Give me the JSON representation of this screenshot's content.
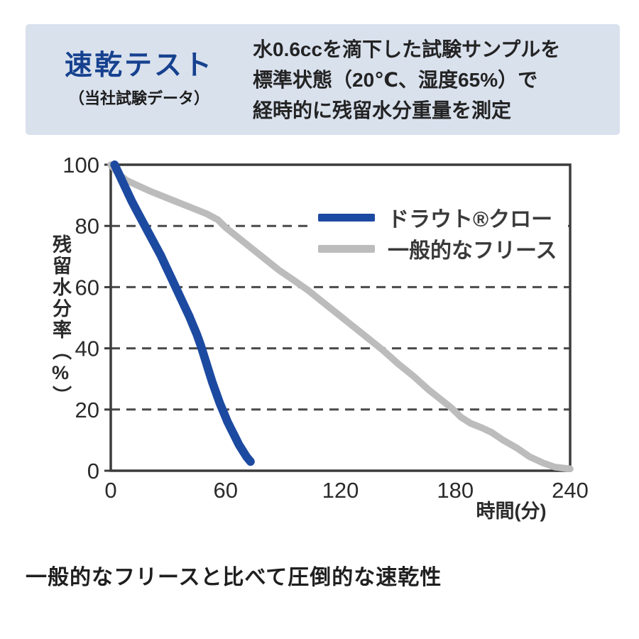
{
  "header": {
    "title": "速乾テスト",
    "subtitle": "（当社試験データ）",
    "description_lines": [
      "水0.6ccを滴下した試験サンプルを",
      "標準状態（20℃、湿度65%）で",
      "経時的に残留水分重量を測定"
    ]
  },
  "chart_data": {
    "type": "line",
    "title": "",
    "xlabel": "時間(分)",
    "ylabel": "残留水分率（%）",
    "xlim": [
      0,
      240
    ],
    "ylim": [
      0,
      100
    ],
    "xticks": [
      0,
      60,
      120,
      180,
      240
    ],
    "yticks": [
      0,
      20,
      40,
      60,
      80,
      100
    ],
    "grid": "horizontal-dashed",
    "legend_position": "upper-right-inside",
    "series": [
      {
        "name": "ドラウト®クロー",
        "color": "#1d4aa1",
        "stroke_width": 12,
        "points": [
          [
            2,
            100
          ],
          [
            5,
            96
          ],
          [
            8,
            92
          ],
          [
            11,
            88
          ],
          [
            14,
            84.5
          ],
          [
            17,
            81
          ],
          [
            20,
            77.5
          ],
          [
            23,
            74
          ],
          [
            26,
            70.5
          ],
          [
            29,
            66.5
          ],
          [
            32,
            62.5
          ],
          [
            35,
            58.5
          ],
          [
            38,
            54.5
          ],
          [
            41,
            50.5
          ],
          [
            43,
            47.5
          ],
          [
            45,
            44.5
          ],
          [
            47,
            41
          ],
          [
            49,
            37
          ],
          [
            51,
            33
          ],
          [
            53,
            29
          ],
          [
            55,
            25.5
          ],
          [
            57,
            22
          ],
          [
            59,
            19
          ],
          [
            61,
            16
          ],
          [
            63,
            13.5
          ],
          [
            65,
            11
          ],
          [
            67,
            8.5
          ],
          [
            69,
            6.5
          ],
          [
            71,
            4.5
          ],
          [
            73,
            3
          ]
        ]
      },
      {
        "name": "一般的なフリース",
        "color": "#bcbcbc",
        "stroke_width": 9.5,
        "points": [
          [
            0,
            100
          ],
          [
            4,
            97
          ],
          [
            8,
            95
          ],
          [
            13,
            93.5
          ],
          [
            20,
            91.5
          ],
          [
            28,
            89.5
          ],
          [
            36,
            87.5
          ],
          [
            44,
            85.5
          ],
          [
            50,
            84
          ],
          [
            56,
            82
          ],
          [
            60,
            79.5
          ],
          [
            66,
            76.5
          ],
          [
            73,
            73
          ],
          [
            80,
            69.5
          ],
          [
            88,
            65.5
          ],
          [
            95,
            62.5
          ],
          [
            103,
            59
          ],
          [
            110,
            55.5
          ],
          [
            118,
            51.5
          ],
          [
            126,
            47.5
          ],
          [
            134,
            43.5
          ],
          [
            142,
            39.5
          ],
          [
            150,
            35
          ],
          [
            158,
            31
          ],
          [
            166,
            26.5
          ],
          [
            172,
            23.5
          ],
          [
            178,
            20.5
          ],
          [
            183,
            17.5
          ],
          [
            188,
            15.5
          ],
          [
            194,
            14
          ],
          [
            199,
            12.5
          ],
          [
            205,
            10
          ],
          [
            212,
            7.5
          ],
          [
            219,
            4.5
          ],
          [
            226,
            2.5
          ],
          [
            232,
            1.2
          ],
          [
            240,
            0.6
          ]
        ]
      }
    ]
  },
  "footer": {
    "text": "一般的なフリースと比べて圧倒的な速乾性"
  },
  "colors": {
    "header_bg": "#d9e1ed",
    "title_blue": "#16418f",
    "axis": "#3c3c3c",
    "grid": "#4a4a4a",
    "tick_text": "#2b2b2b"
  }
}
